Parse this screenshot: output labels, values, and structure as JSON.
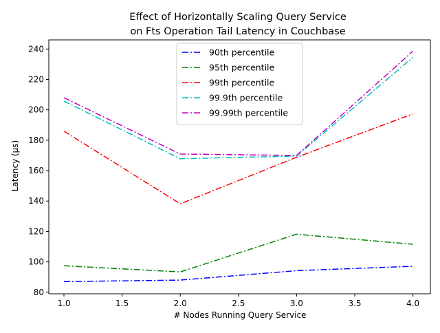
{
  "chart_data": {
    "type": "line",
    "title_line1": "Effect of Horizontally Scaling Query Service",
    "title_line2": "on Fts Operation Tail Latency in Couchbase",
    "xlabel": "# Nodes Running Query Service",
    "ylabel": "Latency (µs)",
    "x": [
      1.0,
      2.0,
      3.0,
      4.0
    ],
    "xlim": [
      0.87,
      4.15
    ],
    "ylim": [
      79,
      246
    ],
    "xticks": [
      1.0,
      1.5,
      2.0,
      2.5,
      3.0,
      3.5,
      4.0
    ],
    "xtick_labels": [
      "1.0",
      "1.5",
      "2.0",
      "2.5",
      "3.0",
      "3.5",
      "4.0"
    ],
    "yticks": [
      80,
      100,
      120,
      140,
      160,
      180,
      200,
      220,
      240
    ],
    "ytick_labels": [
      "80",
      "100",
      "120",
      "140",
      "160",
      "180",
      "200",
      "220",
      "240"
    ],
    "grid": false,
    "legend_position": "top-center",
    "series": [
      {
        "name": "90th percentile",
        "color": "#0000ff",
        "values": [
          87.0,
          88.0,
          94.2,
          97.1
        ]
      },
      {
        "name": "95th percentile",
        "color": "#008000",
        "values": [
          97.4,
          93.4,
          118.2,
          111.6
        ]
      },
      {
        "name": "99th percentile",
        "color": "#ff0000",
        "values": [
          186.0,
          138.2,
          168.8,
          197.3
        ]
      },
      {
        "name": "99.9th percentile",
        "color": "#00bfbf",
        "values": [
          205.8,
          167.8,
          169.6,
          234.5
        ]
      },
      {
        "name": "99.99th percentile",
        "color": "#bf00bf",
        "values": [
          208.0,
          170.9,
          170.0,
          238.6
        ]
      }
    ]
  }
}
